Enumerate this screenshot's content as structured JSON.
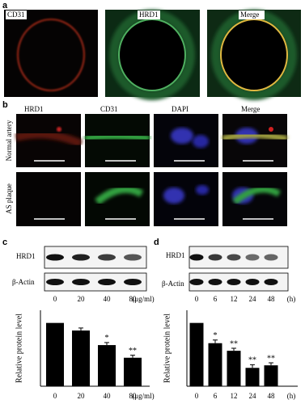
{
  "panel_a": {
    "label": "a",
    "images": [
      "CD31",
      "HRD1",
      "Merge"
    ]
  },
  "panel_b": {
    "label": "b",
    "columns": [
      "HRD1",
      "CD31",
      "DAPI",
      "Merge"
    ],
    "rows": [
      "Normal artery",
      "AS plaque"
    ]
  },
  "panel_c": {
    "label": "c",
    "blot_labels": [
      "HRD1",
      "β-Actin"
    ],
    "lane_labels": [
      "0",
      "20",
      "40",
      "80"
    ],
    "lane_unit": "(μg/ml)"
  },
  "panel_d": {
    "label": "d",
    "blot_labels": [
      "HRD1",
      "β-Actin"
    ],
    "lane_labels": [
      "0",
      "6",
      "12",
      "24",
      "48"
    ],
    "lane_unit": "(h)"
  },
  "chart_data": [
    {
      "type": "bar",
      "y_label": "Relative protein level",
      "categories": [
        "0",
        "20",
        "40",
        "80"
      ],
      "x_unit": "(μg/ml)",
      "values": [
        1.0,
        0.88,
        0.65,
        0.45
      ],
      "errors": [
        0,
        0.04,
        0.04,
        0.04
      ],
      "significance": [
        null,
        null,
        "*",
        "**"
      ],
      "color": "#000000",
      "ylim": [
        0,
        1.2
      ]
    },
    {
      "type": "bar",
      "y_label": "Relative protein level",
      "categories": [
        "0",
        "6",
        "12",
        "24",
        "48"
      ],
      "x_unit": "(h)",
      "values": [
        1.0,
        0.68,
        0.56,
        0.29,
        0.33
      ],
      "errors": [
        0,
        0.05,
        0.04,
        0.05,
        0.04
      ],
      "significance": [
        null,
        "*",
        "**",
        "**",
        "**"
      ],
      "color": "#000000",
      "ylim": [
        0,
        1.2
      ]
    }
  ]
}
